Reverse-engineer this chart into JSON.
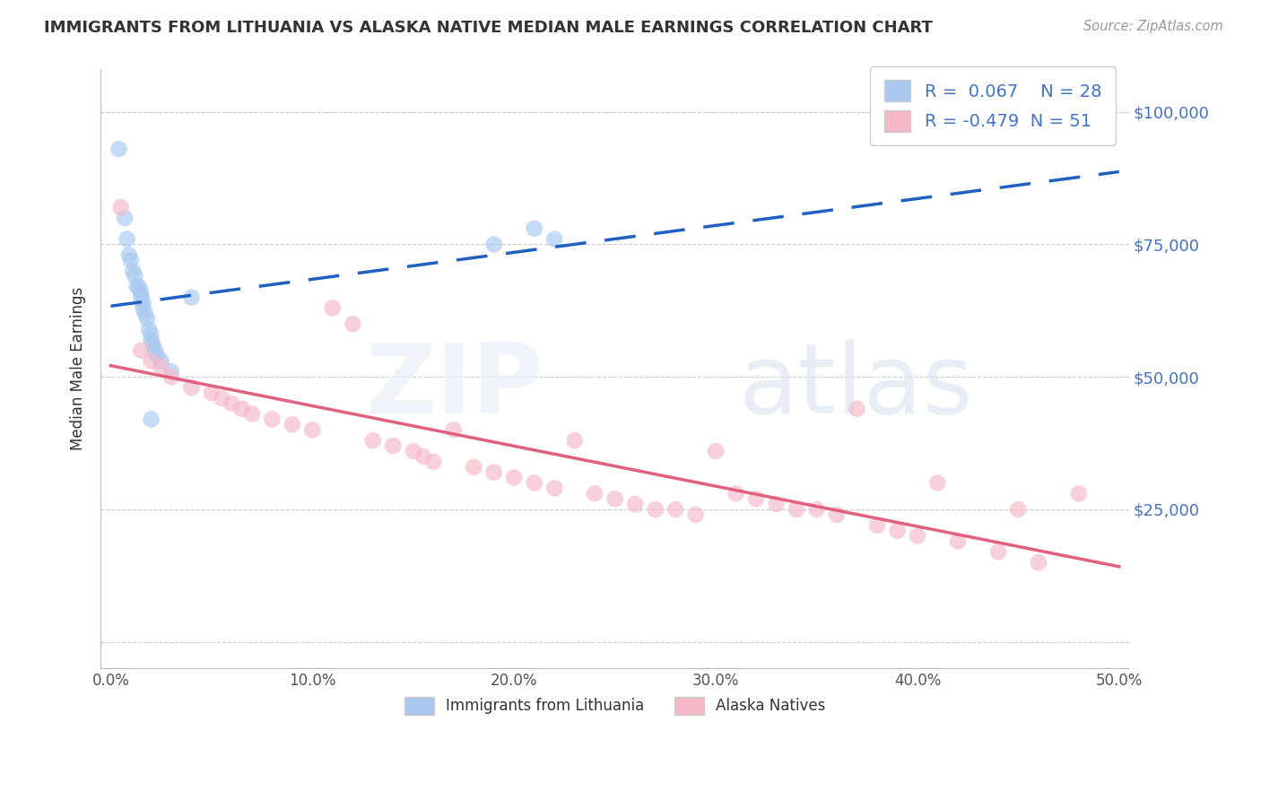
{
  "title": "IMMIGRANTS FROM LITHUANIA VS ALASKA NATIVE MEDIAN MALE EARNINGS CORRELATION CHART",
  "source": "Source: ZipAtlas.com",
  "ylabel": "Median Male Earnings",
  "blue_R": 0.067,
  "blue_N": 28,
  "pink_R": -0.479,
  "pink_N": 51,
  "blue_color": "#A8C8F0",
  "pink_color": "#F5B8C8",
  "blue_line_color": "#2060C0",
  "pink_line_color": "#E06080",
  "ytick_right_labels": [
    "",
    "$25,000",
    "$50,000",
    "$75,000",
    "$100,000"
  ],
  "ytick_right_color": "#4472C4",
  "xtick_labels": [
    "0.0%",
    "10.0%",
    "20.0%",
    "30.0%",
    "40.0%",
    "50.0%"
  ],
  "blue_x": [
    0.004,
    0.007,
    0.008,
    0.009,
    0.01,
    0.011,
    0.012,
    0.013,
    0.014,
    0.015,
    0.015,
    0.016,
    0.016,
    0.017,
    0.018,
    0.019,
    0.02,
    0.02,
    0.021,
    0.022,
    0.023,
    0.025,
    0.03,
    0.04,
    0.19,
    0.21,
    0.22,
    0.02
  ],
  "blue_y": [
    93000,
    80000,
    76000,
    73000,
    72000,
    70000,
    69000,
    67000,
    67000,
    66000,
    65000,
    64000,
    63000,
    62000,
    61000,
    59000,
    58000,
    57000,
    56000,
    55000,
    54000,
    53000,
    51000,
    65000,
    75000,
    78000,
    76000,
    42000
  ],
  "pink_x": [
    0.005,
    0.015,
    0.02,
    0.025,
    0.03,
    0.04,
    0.05,
    0.055,
    0.06,
    0.065,
    0.07,
    0.08,
    0.09,
    0.1,
    0.11,
    0.12,
    0.13,
    0.14,
    0.15,
    0.155,
    0.16,
    0.17,
    0.18,
    0.19,
    0.2,
    0.21,
    0.22,
    0.23,
    0.24,
    0.25,
    0.26,
    0.27,
    0.28,
    0.29,
    0.3,
    0.31,
    0.32,
    0.33,
    0.34,
    0.35,
    0.36,
    0.37,
    0.38,
    0.39,
    0.4,
    0.41,
    0.42,
    0.44,
    0.45,
    0.46,
    0.48
  ],
  "pink_y": [
    82000,
    55000,
    53000,
    52000,
    50000,
    48000,
    47000,
    46000,
    45000,
    44000,
    43000,
    42000,
    41000,
    40000,
    63000,
    60000,
    38000,
    37000,
    36000,
    35000,
    34000,
    40000,
    33000,
    32000,
    31000,
    30000,
    29000,
    38000,
    28000,
    27000,
    26000,
    25000,
    25000,
    24000,
    36000,
    28000,
    27000,
    26000,
    25000,
    25000,
    24000,
    44000,
    22000,
    21000,
    20000,
    30000,
    19000,
    17000,
    25000,
    15000,
    28000
  ],
  "xlim": [
    -0.005,
    0.505
  ],
  "ylim": [
    -5000,
    108000
  ],
  "yticks": [
    0,
    25000,
    50000,
    75000,
    100000
  ],
  "xticks": [
    0.0,
    0.1,
    0.2,
    0.3,
    0.4,
    0.5
  ],
  "grid_color": "#CCCCCC",
  "title_fontsize": 13,
  "label_fontsize": 12,
  "legend_fontsize": 14,
  "scatter_size": 180,
  "scatter_alpha": 0.65
}
